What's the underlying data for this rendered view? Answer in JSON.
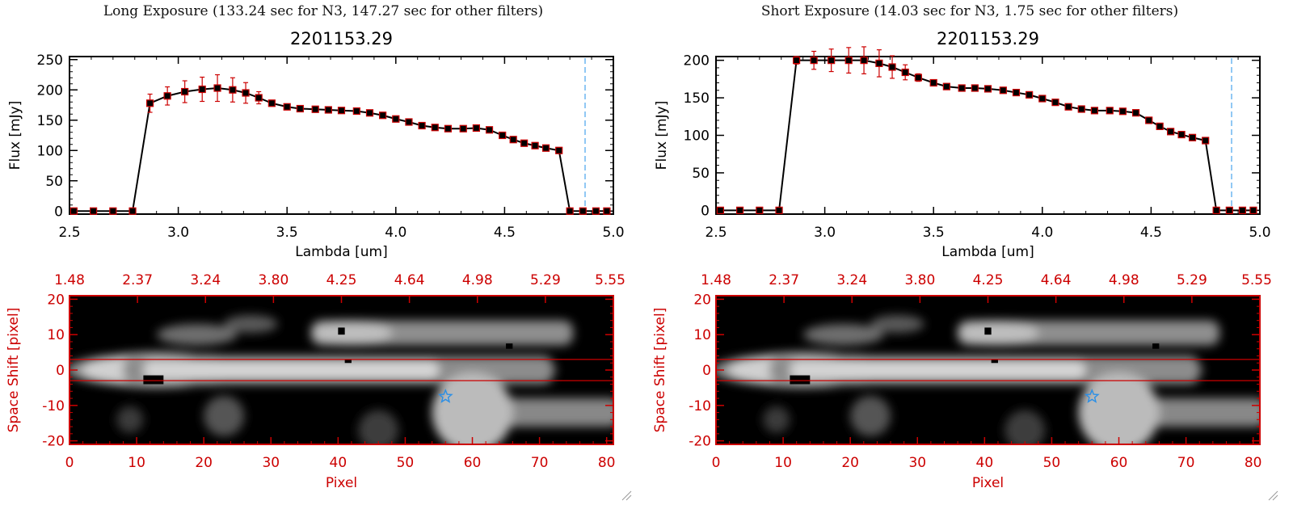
{
  "panels": [
    {
      "id": "long",
      "title": "Long Exposure (133.24 sec for N3, 147.27 sec for other filters)",
      "chart_data": [
        {
          "type": "line",
          "title": "2201153.29",
          "xlabel": "Lambda [um]",
          "ylabel": "Flux [mJy]",
          "xlim": [
            2.5,
            5.0
          ],
          "ylim": [
            -5,
            255
          ],
          "xticks": [
            "2.5",
            "3.0",
            "3.5",
            "4.0",
            "4.5",
            "5.0"
          ],
          "yticks": [
            "0",
            "50",
            "100",
            "150",
            "200",
            "250"
          ],
          "x": [
            2.52,
            2.61,
            2.7,
            2.79,
            2.87,
            2.95,
            3.03,
            3.11,
            3.18,
            3.25,
            3.31,
            3.37,
            3.43,
            3.5,
            3.56,
            3.63,
            3.69,
            3.75,
            3.82,
            3.88,
            3.94,
            4.0,
            4.06,
            4.12,
            4.18,
            4.24,
            4.31,
            4.37,
            4.43,
            4.49,
            4.54,
            4.59,
            4.64,
            4.69,
            4.75,
            4.8,
            4.86,
            4.92,
            4.97
          ],
          "y": [
            0,
            0,
            0,
            0,
            178,
            190,
            197,
            201,
            203,
            200,
            195,
            187,
            178,
            172,
            169,
            168,
            167,
            166,
            165,
            162,
            158,
            152,
            147,
            141,
            138,
            136,
            136,
            137,
            134,
            125,
            118,
            112,
            108,
            104,
            100,
            0,
            0,
            0,
            0
          ],
          "yerr": [
            0,
            0,
            0,
            0,
            15,
            15,
            18,
            20,
            22,
            20,
            17,
            10,
            5,
            3,
            3,
            3,
            3,
            3,
            3,
            3,
            3,
            3,
            3,
            3,
            3,
            3,
            3,
            3,
            3,
            3,
            3,
            3,
            3,
            3,
            3,
            0,
            0,
            0,
            0
          ],
          "line_color": "#000000",
          "marker_color": "#cc0000",
          "vline_x": 4.87,
          "vline_color": "#55aaee"
        },
        {
          "type": "heatmap",
          "xlabel": "Pixel",
          "ylabel": "Space Shift [pixel]",
          "xlim": [
            0,
            81
          ],
          "ylim": [
            -21,
            21
          ],
          "xticks": [
            "0",
            "10",
            "20",
            "30",
            "40",
            "50",
            "60",
            "70",
            "80"
          ],
          "yticks": [
            "-20",
            "-10",
            "0",
            "10",
            "20"
          ],
          "top_axis_ticks": [
            "1.48",
            "2.37",
            "3.24",
            "3.80",
            "4.25",
            "4.64",
            "4.98",
            "5.29",
            "5.55"
          ],
          "aperture_lines": [
            3,
            -3
          ],
          "star_marker": [
            56,
            -7.5
          ],
          "axis_color": "#cc0000"
        }
      ]
    },
    {
      "id": "short",
      "title": "Short Exposure (14.03 sec for N3, 1.75 sec for other filters)",
      "chart_data": [
        {
          "type": "line",
          "title": "2201153.29",
          "xlabel": "Lambda [um]",
          "ylabel": "Flux [mJy]",
          "xlim": [
            2.5,
            5.0
          ],
          "ylim": [
            -5,
            205
          ],
          "xticks": [
            "2.5",
            "3.0",
            "3.5",
            "4.0",
            "4.5",
            "5.0"
          ],
          "yticks": [
            "0",
            "50",
            "100",
            "150",
            "200"
          ],
          "x": [
            2.52,
            2.61,
            2.7,
            2.79,
            2.87,
            2.95,
            3.03,
            3.11,
            3.18,
            3.25,
            3.31,
            3.37,
            3.43,
            3.5,
            3.56,
            3.63,
            3.69,
            3.75,
            3.82,
            3.88,
            3.94,
            4.0,
            4.06,
            4.12,
            4.18,
            4.24,
            4.31,
            4.37,
            4.43,
            4.49,
            4.54,
            4.59,
            4.64,
            4.69,
            4.75,
            4.8,
            4.86,
            4.92,
            4.97
          ],
          "y": [
            0,
            0,
            0,
            0,
            200,
            200,
            200,
            200,
            200,
            196,
            191,
            184,
            177,
            170,
            165,
            163,
            163,
            162,
            160,
            157,
            154,
            149,
            144,
            138,
            135,
            133,
            133,
            132,
            130,
            120,
            112,
            105,
            101,
            97,
            93,
            0,
            0,
            0,
            0
          ],
          "yerr": [
            0,
            0,
            0,
            0,
            5,
            12,
            15,
            17,
            18,
            18,
            15,
            10,
            5,
            3,
            3,
            3,
            3,
            3,
            3,
            3,
            3,
            3,
            3,
            3,
            3,
            3,
            3,
            3,
            3,
            3,
            3,
            3,
            3,
            3,
            3,
            0,
            0,
            0,
            0
          ],
          "line_color": "#000000",
          "marker_color": "#cc0000",
          "vline_x": 4.87,
          "vline_color": "#55aaee"
        },
        {
          "type": "heatmap",
          "xlabel": "Pixel",
          "ylabel": "Space Shift [pixel]",
          "xlim": [
            0,
            81
          ],
          "ylim": [
            -21,
            21
          ],
          "xticks": [
            "0",
            "10",
            "20",
            "30",
            "40",
            "50",
            "60",
            "70",
            "80"
          ],
          "yticks": [
            "-20",
            "-10",
            "0",
            "10",
            "20"
          ],
          "top_axis_ticks": [
            "1.48",
            "2.37",
            "3.24",
            "3.80",
            "4.25",
            "4.64",
            "4.98",
            "5.29",
            "5.55"
          ],
          "aperture_lines": [
            3,
            -3
          ],
          "star_marker": [
            56,
            -7.5
          ],
          "axis_color": "#cc0000"
        }
      ]
    }
  ]
}
